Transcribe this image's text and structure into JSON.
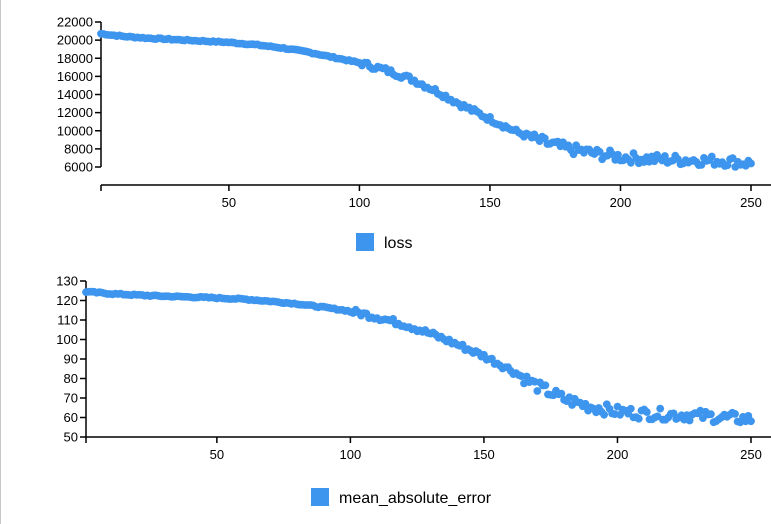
{
  "colors": {
    "series": "#3d95ee"
  },
  "chart_data": [
    {
      "type": "scatter",
      "legend": [
        "loss"
      ],
      "legend_placement": "bottom-center",
      "grid": false,
      "xlim": [
        1,
        250
      ],
      "ylim": [
        5500,
        22000
      ],
      "x_ticks": [
        50,
        100,
        150,
        200,
        250
      ],
      "y_ticks": [
        6000,
        8000,
        10000,
        12000,
        14000,
        16000,
        18000,
        20000,
        22000
      ],
      "series": [
        {
          "name": "loss",
          "x": [
            1,
            10,
            20,
            30,
            40,
            50,
            60,
            70,
            80,
            90,
            100,
            110,
            120,
            130,
            140,
            150,
            160,
            170,
            180,
            190,
            200,
            210,
            220,
            230,
            240,
            250
          ],
          "y": [
            20700,
            20400,
            20200,
            20050,
            19900,
            19750,
            19500,
            19150,
            18700,
            18100,
            17500,
            16700,
            15700,
            14300,
            12700,
            11300,
            9900,
            8800,
            8000,
            7500,
            7100,
            6900,
            6800,
            6750,
            6650,
            6400
          ]
        }
      ]
    },
    {
      "type": "scatter",
      "legend": [
        "mean_absolute_error"
      ],
      "legend_placement": "bottom-center",
      "grid": false,
      "xlim": [
        1,
        250
      ],
      "ylim": [
        49,
        131
      ],
      "x_ticks": [
        50,
        100,
        150,
        200,
        250
      ],
      "y_ticks": [
        50,
        60,
        70,
        80,
        90,
        100,
        110,
        120,
        130
      ],
      "series": [
        {
          "name": "mean_absolute_error",
          "x": [
            1,
            10,
            20,
            30,
            40,
            50,
            60,
            70,
            80,
            90,
            100,
            110,
            120,
            130,
            140,
            150,
            160,
            170,
            180,
            190,
            200,
            210,
            220,
            230,
            240,
            250
          ],
          "y": [
            124.5,
            123.5,
            122.8,
            122.2,
            121.8,
            121.3,
            120.7,
            119.6,
            118.3,
            116.5,
            114.5,
            111.5,
            107.8,
            103,
            97.5,
            91.5,
            84.5,
            76,
            69.5,
            65.5,
            63,
            62,
            61.5,
            61,
            60,
            59
          ]
        }
      ]
    }
  ]
}
